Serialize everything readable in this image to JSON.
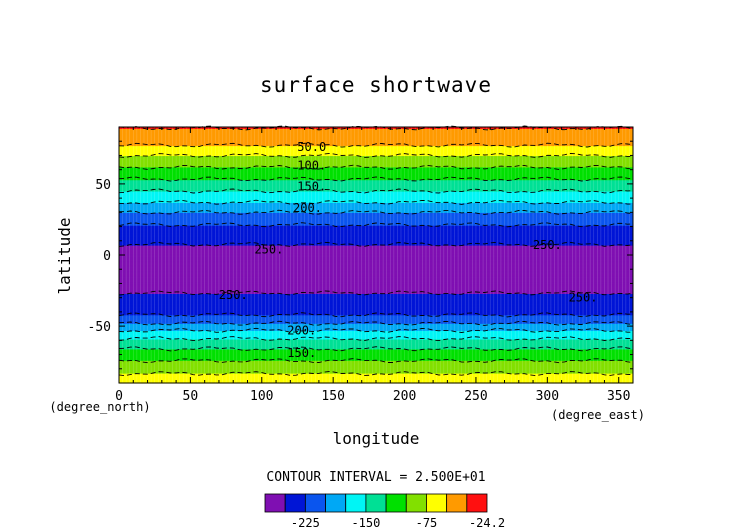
{
  "chart_data": {
    "type": "heatmap",
    "title": "surface shortwave",
    "xlabel": "longitude",
    "ylabel": "latitude",
    "x_unit": "(degree_east)",
    "y_unit": "(degree_north)",
    "xlim": [
      0,
      360
    ],
    "ylim": [
      -90,
      90
    ],
    "x_ticks": [
      0,
      50,
      100,
      150,
      200,
      250,
      300,
      350
    ],
    "y_ticks": [
      -50,
      0,
      50
    ],
    "contour_interval_text": "CONTOUR INTERVAL = 2.500E+01",
    "contour_interval": 25,
    "levels": [
      -250,
      -225,
      -200,
      -175,
      -150,
      -125,
      -100,
      -75,
      -50,
      -25
    ],
    "color_bins": [
      {
        "min": -275,
        "max": -250,
        "color": "#7f0fb2"
      },
      {
        "min": -250,
        "max": -225,
        "color": "#0015d6"
      },
      {
        "min": -225,
        "max": -200,
        "color": "#0a55ee"
      },
      {
        "min": -200,
        "max": -175,
        "color": "#00a8f5"
      },
      {
        "min": -175,
        "max": -150,
        "color": "#00f5f5"
      },
      {
        "min": -150,
        "max": -125,
        "color": "#00e095"
      },
      {
        "min": -125,
        "max": -100,
        "color": "#00e000"
      },
      {
        "min": -100,
        "max": -75,
        "color": "#82e000"
      },
      {
        "min": -75,
        "max": -50,
        "color": "#ffff00"
      },
      {
        "min": -50,
        "max": -25,
        "color": "#ff9a00"
      },
      {
        "min": -25,
        "max": -24.2,
        "color": "#ff1010"
      }
    ],
    "zonal_profile": {
      "latitude": [
        -90,
        -85,
        -80,
        -75,
        -70,
        -65,
        -60,
        -55,
        -50,
        -45,
        -40,
        -35,
        -30,
        -25,
        -20,
        -15,
        -10,
        -5,
        0,
        5,
        10,
        15,
        20,
        25,
        30,
        35,
        40,
        45,
        50,
        55,
        60,
        65,
        70,
        75,
        80,
        85,
        90
      ],
      "value": [
        -60,
        -70,
        -85,
        -98,
        -112,
        -128,
        -145,
        -165,
        -190,
        -215,
        -232,
        -240,
        -246,
        -252,
        -256,
        -258,
        -259,
        -258,
        -257,
        -254,
        -246,
        -238,
        -228,
        -216,
        -200,
        -182,
        -165,
        -150,
        -136,
        -120,
        -105,
        -90,
        -75,
        -58,
        -40,
        -30,
        -24.2
      ]
    },
    "contour_labels": [
      {
        "text": "50.0",
        "lon": 135,
        "lat": 76
      },
      {
        "text": "100.",
        "lon": 135,
        "lat": 63
      },
      {
        "text": "150.",
        "lon": 135,
        "lat": 48
      },
      {
        "text": "200.",
        "lon": 132,
        "lat": 33
      },
      {
        "text": "250.",
        "lon": 105,
        "lat": 4
      },
      {
        "text": "250.",
        "lon": 300,
        "lat": 7
      },
      {
        "text": "250.",
        "lon": 80,
        "lat": -28
      },
      {
        "text": "250.",
        "lon": 325,
        "lat": -30
      },
      {
        "text": "200.",
        "lon": 128,
        "lat": -53
      },
      {
        "text": "150.",
        "lon": 128,
        "lat": -69
      }
    ],
    "colorbar_tick_labels": [
      {
        "text": "-225",
        "value": -225
      },
      {
        "text": "-150",
        "value": -150
      },
      {
        "text": "-75",
        "value": -75
      },
      {
        "text": "-24.2",
        "value": -24.2
      }
    ]
  }
}
